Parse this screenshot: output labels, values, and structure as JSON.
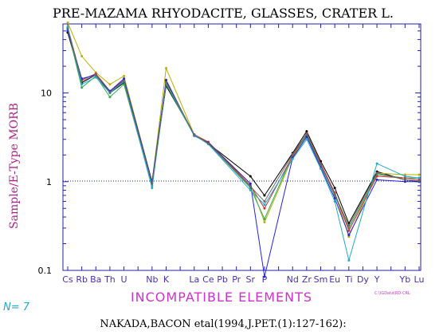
{
  "chart_data": {
    "type": "line",
    "title": "PRE-MAZAMA RHYODACITE, GLASSES, CRATER L.",
    "ylabel": "Sample/E-Type MORB",
    "xlabel": "INCOMPATIBLE ELEMENTS",
    "yscale": "log",
    "ylim": [
      0.1,
      60
    ],
    "yticks": [
      "10",
      "1",
      "0.1"
    ],
    "reference_line": 1,
    "n_label": "N= 7",
    "legend_note": "C:\\IGData\\RD-CRL",
    "reference_text": "NAKADA,BACON etal(1994,J.PET.(1):127-162):",
    "categories": [
      "Cs",
      "Rb",
      "Ba",
      "Th",
      "U",
      "",
      "Nb",
      "K",
      "",
      "La",
      "Ce",
      "Pb",
      "Pr",
      "Sr",
      "P",
      "",
      "Nd",
      "Zr",
      "Sm",
      "Eu",
      "Ti",
      "Dy",
      "Y",
      "",
      "Yb",
      "Lu"
    ],
    "series": [
      {
        "color": "#000000",
        "values": [
          48,
          13,
          16,
          10,
          13,
          null,
          1,
          12,
          null,
          3.4,
          2.7,
          null,
          null,
          1.15,
          0.7,
          null,
          2.1,
          3.7,
          1.7,
          0.85,
          0.34,
          null,
          1.3,
          null,
          1.05,
          1.0
        ]
      },
      {
        "color": "#b8b000",
        "values": [
          62,
          26,
          17,
          12.5,
          15.5,
          null,
          1,
          19,
          null,
          3.4,
          2.8,
          null,
          null,
          0.95,
          0.35,
          null,
          1.9,
          3.4,
          1.5,
          0.75,
          0.24,
          null,
          1.25,
          null,
          1.2,
          1.2
        ]
      },
      {
        "color": "#33aa55",
        "values": [
          52,
          11.5,
          15.5,
          9,
          12.5,
          null,
          0.9,
          12.5,
          null,
          3.3,
          2.7,
          null,
          null,
          0.85,
          0.38,
          null,
          2.0,
          3.3,
          1.55,
          0.7,
          0.3,
          null,
          1.2,
          null,
          1.1,
          1.1
        ]
      },
      {
        "color": "#cc3333",
        "values": [
          55,
          14,
          16.5,
          10.5,
          14,
          null,
          1,
          13.5,
          null,
          3.4,
          2.8,
          null,
          null,
          0.9,
          0.5,
          null,
          1.95,
          3.5,
          1.6,
          0.75,
          0.28,
          null,
          1.15,
          null,
          1.1,
          1.05
        ]
      },
      {
        "color": "#2222dd",
        "values": [
          50,
          14.5,
          16,
          10.5,
          14.5,
          null,
          1,
          14,
          null,
          3.3,
          2.75,
          null,
          null,
          0.95,
          0.085,
          null,
          1.85,
          3.2,
          1.45,
          0.65,
          0.25,
          null,
          1.05,
          null,
          1.0,
          1.0
        ]
      },
      {
        "color": "#22aacc",
        "values": [
          56,
          12.5,
          15,
          10,
          13.5,
          null,
          0.85,
          13,
          null,
          3.35,
          2.65,
          null,
          null,
          0.8,
          0.55,
          null,
          1.8,
          3.0,
          1.4,
          0.6,
          0.13,
          null,
          1.6,
          null,
          1.15,
          1.1
        ]
      },
      {
        "color": "#666666",
        "values": [
          53,
          13.5,
          16,
          10.2,
          13.8,
          null,
          0.95,
          13.2,
          null,
          3.4,
          2.7,
          null,
          null,
          0.88,
          0.6,
          null,
          2.05,
          3.45,
          1.55,
          0.72,
          0.32,
          null,
          1.25,
          null,
          1.05,
          1.02
        ]
      }
    ],
    "colors": {
      "axis": "#2222aa",
      "ylabel": "#aa2288",
      "xlabel": "#cc33cc",
      "xticks": "#4433aa",
      "nlabel": "#22aacc",
      "refline": "#2222aa"
    }
  }
}
